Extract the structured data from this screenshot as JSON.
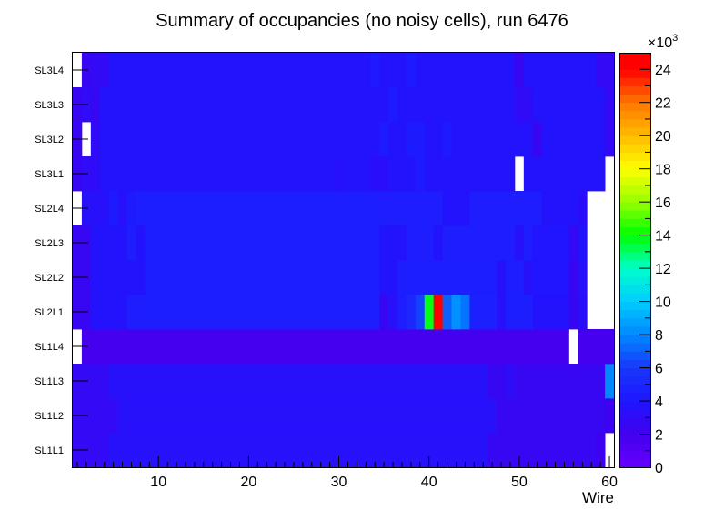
{
  "chart_data": {
    "type": "heatmap",
    "title": "Summary of occupancies (no noisy cells), run 6476",
    "xlabel": "Wire",
    "ylabel": "",
    "xlim": [
      0.5,
      60.5
    ],
    "x_ticks": [
      10,
      20,
      30,
      40,
      50,
      60
    ],
    "rows": [
      "SL1L1",
      "SL1L2",
      "SL1L3",
      "SL1L4",
      "SL2L1",
      "SL2L2",
      "SL2L3",
      "SL2L4",
      "SL3L1",
      "SL3L2",
      "SL3L3",
      "SL3L4"
    ],
    "colorbar": {
      "min": 0,
      "max": 25,
      "exponent_label": "×10",
      "exponent": "3",
      "ticks": [
        0,
        2,
        4,
        6,
        8,
        10,
        12,
        14,
        16,
        18,
        20,
        22,
        24
      ]
    },
    "cells_unit": "thousands of hits",
    "segments": [
      [
        [
          1,
          4,
          2.8
        ],
        [
          5,
          46,
          3.5
        ],
        [
          47,
          58,
          2.6
        ],
        [
          59,
          59,
          2.2
        ],
        [
          60,
          60,
          null
        ]
      ],
      [
        [
          1,
          5,
          2.8
        ],
        [
          6,
          47,
          3.5
        ],
        [
          48,
          59,
          2.6
        ],
        [
          60,
          60,
          2.2
        ]
      ],
      [
        [
          1,
          4,
          2.8
        ],
        [
          5,
          46,
          3.5
        ],
        [
          47,
          48,
          2.6
        ],
        [
          49,
          49,
          3.1
        ],
        [
          50,
          59,
          2.6
        ],
        [
          60,
          60,
          8.0
        ]
      ],
      [
        [
          1,
          1,
          null
        ],
        [
          2,
          55,
          1.8
        ],
        [
          56,
          56,
          null
        ],
        [
          57,
          60,
          1.8
        ]
      ],
      [
        [
          1,
          2,
          2.6
        ],
        [
          3,
          6,
          3.7
        ],
        [
          7,
          8,
          4.4
        ],
        [
          9,
          34,
          4.5
        ],
        [
          35,
          35,
          2.6
        ],
        [
          36,
          36,
          3.5
        ],
        [
          37,
          37,
          4.4
        ],
        [
          38,
          38,
          5.0
        ],
        [
          39,
          39,
          6.3
        ],
        [
          40,
          40,
          13.8
        ],
        [
          41,
          41,
          24.5
        ],
        [
          42,
          42,
          7.0
        ],
        [
          43,
          43,
          8.3
        ],
        [
          44,
          44,
          7.5
        ],
        [
          45,
          47,
          4.6
        ],
        [
          48,
          48,
          3.5
        ],
        [
          49,
          51,
          4.5
        ],
        [
          52,
          55,
          3.7
        ],
        [
          56,
          56,
          2.6
        ],
        [
          57,
          57,
          3.3
        ],
        [
          58,
          60,
          null
        ]
      ],
      [
        [
          1,
          2,
          2.6
        ],
        [
          3,
          8,
          3.7
        ],
        [
          9,
          34,
          4.5
        ],
        [
          35,
          36,
          3.7
        ],
        [
          37,
          47,
          4.5
        ],
        [
          48,
          48,
          3.5
        ],
        [
          49,
          50,
          4.4
        ],
        [
          51,
          51,
          3.5
        ],
        [
          52,
          55,
          3.9
        ],
        [
          56,
          56,
          2.6
        ],
        [
          57,
          57,
          3.5
        ],
        [
          58,
          60,
          null
        ]
      ],
      [
        [
          1,
          2,
          2.6
        ],
        [
          3,
          6,
          3.7
        ],
        [
          7,
          7,
          4.4
        ],
        [
          8,
          8,
          3.7
        ],
        [
          9,
          34,
          4.5
        ],
        [
          35,
          37,
          3.7
        ],
        [
          38,
          40,
          4.4
        ],
        [
          41,
          41,
          3.7
        ],
        [
          42,
          49,
          4.4
        ],
        [
          50,
          50,
          3.5
        ],
        [
          51,
          51,
          4.4
        ],
        [
          52,
          55,
          3.9
        ],
        [
          56,
          56,
          2.8
        ],
        [
          57,
          57,
          3.7
        ],
        [
          58,
          60,
          null
        ]
      ],
      [
        [
          1,
          1,
          null
        ],
        [
          2,
          4,
          3.5
        ],
        [
          5,
          5,
          4.3
        ],
        [
          6,
          6,
          3.5
        ],
        [
          7,
          7,
          4.3
        ],
        [
          8,
          34,
          4.5
        ],
        [
          35,
          41,
          4.4
        ],
        [
          42,
          44,
          3.7
        ],
        [
          45,
          52,
          4.4
        ],
        [
          53,
          56,
          3.7
        ],
        [
          57,
          57,
          3.3
        ],
        [
          58,
          60,
          null
        ]
      ],
      [
        [
          1,
          1,
          2.6
        ],
        [
          2,
          3,
          3.0
        ],
        [
          4,
          29,
          3.7
        ],
        [
          30,
          30,
          3.5
        ],
        [
          31,
          33,
          3.7
        ],
        [
          34,
          35,
          3.3
        ],
        [
          36,
          38,
          3.7
        ],
        [
          39,
          39,
          4.3
        ],
        [
          40,
          49,
          3.7
        ],
        [
          50,
          50,
          null
        ],
        [
          51,
          59,
          3.7
        ],
        [
          60,
          60,
          null
        ]
      ],
      [
        [
          1,
          1,
          2.6
        ],
        [
          2,
          2,
          null
        ],
        [
          3,
          3,
          3.0
        ],
        [
          4,
          34,
          3.7
        ],
        [
          35,
          35,
          4.3
        ],
        [
          36,
          37,
          3.7
        ],
        [
          38,
          39,
          4.3
        ],
        [
          40,
          41,
          3.7
        ],
        [
          42,
          42,
          4.3
        ],
        [
          43,
          51,
          3.7
        ],
        [
          52,
          52,
          2.6
        ],
        [
          53,
          59,
          3.7
        ],
        [
          60,
          60,
          2.8
        ]
      ],
      [
        [
          1,
          1,
          2.6
        ],
        [
          2,
          2,
          3.0
        ],
        [
          3,
          3,
          2.6
        ],
        [
          4,
          35,
          3.7
        ],
        [
          36,
          36,
          4.3
        ],
        [
          37,
          49,
          3.7
        ],
        [
          50,
          51,
          3.0
        ],
        [
          52,
          59,
          3.7
        ],
        [
          60,
          60,
          2.8
        ]
      ],
      [
        [
          1,
          1,
          null
        ],
        [
          2,
          2,
          2.6
        ],
        [
          3,
          4,
          2.8
        ],
        [
          5,
          33,
          3.7
        ],
        [
          34,
          34,
          4.3
        ],
        [
          35,
          37,
          3.7
        ],
        [
          38,
          38,
          4.3
        ],
        [
          39,
          49,
          3.7
        ],
        [
          50,
          50,
          2.6
        ],
        [
          51,
          58,
          3.7
        ],
        [
          59,
          60,
          2.8
        ]
      ]
    ]
  }
}
